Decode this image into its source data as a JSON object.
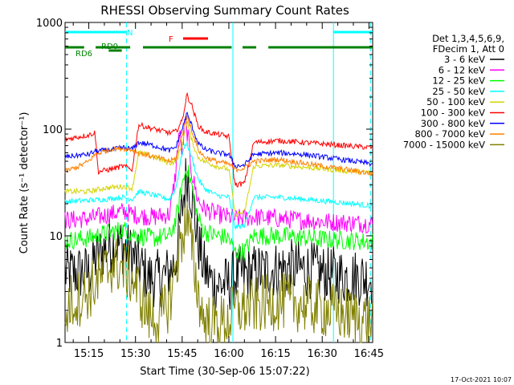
{
  "chart_data": {
    "type": "line",
    "title": "RHESSI Observing Summary Count Rates",
    "xlabel": "Start Time (30-Sep-06 15:07:22)",
    "ylabel": "Count Rate (s⁻¹ detector⁻¹)",
    "x_ticks": [
      "15:15",
      "15:30",
      "15:45",
      "16:00",
      "16:15",
      "16:30",
      "16:45"
    ],
    "x_tick_minutes": [
      15,
      30,
      45,
      60,
      75,
      90,
      105
    ],
    "xlim_minutes": [
      7.37,
      106.2
    ],
    "y_scale": "log",
    "ylim": [
      1,
      1000
    ],
    "y_ticks": [
      "1",
      "10",
      "100",
      "1000"
    ],
    "y_tick_values": [
      1,
      10,
      100,
      1000
    ],
    "legend_header": [
      "Det 1,3,4,5,6,9,",
      "FDecim 1, Att 0"
    ],
    "legend_position": "right",
    "series": [
      {
        "name": "3 - 6 keV",
        "color": "#000000",
        "points": [
          [
            7.4,
            4.5
          ],
          [
            15,
            4.5
          ],
          [
            17,
            6
          ],
          [
            20,
            7.5
          ],
          [
            23,
            8.5
          ],
          [
            26,
            8
          ],
          [
            29,
            6.5
          ],
          [
            31,
            5.5
          ],
          [
            34,
            4
          ],
          [
            38,
            4
          ],
          [
            41,
            4.5
          ],
          [
            43,
            6
          ],
          [
            45,
            18
          ],
          [
            46.5,
            40
          ],
          [
            48,
            25
          ],
          [
            50,
            9
          ],
          [
            52,
            5
          ],
          [
            55,
            3.5
          ],
          [
            60,
            3.5
          ],
          [
            62,
            4.2
          ],
          [
            68,
            4.5
          ],
          [
            74,
            4.8
          ],
          [
            80,
            5
          ],
          [
            86,
            4.8
          ],
          [
            90,
            4.5
          ],
          [
            96,
            4.2
          ],
          [
            106.2,
            4
          ]
        ]
      },
      {
        "name": "6 - 12 keV",
        "color": "#ff00ff",
        "points": [
          [
            7.4,
            14
          ],
          [
            15,
            14.5
          ],
          [
            20,
            15.5
          ],
          [
            26,
            17
          ],
          [
            29,
            16
          ],
          [
            31,
            15.5
          ],
          [
            36,
            15
          ],
          [
            41,
            16
          ],
          [
            43,
            40
          ],
          [
            44,
            100
          ],
          [
            45,
            60
          ],
          [
            46,
            120
          ],
          [
            47,
            80
          ],
          [
            48,
            40
          ],
          [
            50,
            22
          ],
          [
            52,
            18
          ],
          [
            56,
            16
          ],
          [
            60,
            15
          ],
          [
            62,
            14.5
          ],
          [
            68,
            15
          ],
          [
            76,
            14.5
          ],
          [
            84,
            14
          ],
          [
            92,
            13.5
          ],
          [
            100,
            13.2
          ],
          [
            106.2,
            13
          ]
        ]
      },
      {
        "name": "12 - 25 keV",
        "color": "#00ff00",
        "points": [
          [
            7.4,
            9
          ],
          [
            15,
            9.5
          ],
          [
            20,
            10.5
          ],
          [
            26,
            11.5
          ],
          [
            29,
            10.5
          ],
          [
            31,
            10
          ],
          [
            36,
            9.5
          ],
          [
            41,
            10
          ],
          [
            43,
            14
          ],
          [
            45,
            30
          ],
          [
            46.5,
            45
          ],
          [
            48,
            30
          ],
          [
            50,
            15
          ],
          [
            52,
            11
          ],
          [
            56,
            10
          ],
          [
            60,
            9.5
          ],
          [
            62,
            7
          ],
          [
            65,
            7.2
          ],
          [
            68,
            10
          ],
          [
            76,
            10
          ],
          [
            84,
            9.6
          ],
          [
            92,
            9.2
          ],
          [
            100,
            9
          ],
          [
            106.2,
            8.8
          ]
        ]
      },
      {
        "name": "25 - 50 keV",
        "color": "#00ffff",
        "points": [
          [
            7.4,
            21
          ],
          [
            15,
            21.5
          ],
          [
            20,
            22
          ],
          [
            26,
            23
          ],
          [
            29,
            22
          ],
          [
            31,
            26
          ],
          [
            36,
            24
          ],
          [
            41,
            22
          ],
          [
            43,
            28
          ],
          [
            45,
            60
          ],
          [
            46.5,
            75
          ],
          [
            48,
            55
          ],
          [
            50,
            35
          ],
          [
            52,
            28
          ],
          [
            56,
            24
          ],
          [
            60,
            23
          ],
          [
            62,
            12
          ],
          [
            65,
            12.5
          ],
          [
            68,
            23
          ],
          [
            76,
            23
          ],
          [
            84,
            22
          ],
          [
            92,
            21
          ],
          [
            100,
            20
          ],
          [
            106.2,
            19
          ]
        ]
      },
      {
        "name": "50 - 100 keV",
        "color": "#d4d400",
        "points": [
          [
            7.4,
            26
          ],
          [
            15,
            26
          ],
          [
            20,
            28
          ],
          [
            26,
            29
          ],
          [
            29,
            28
          ],
          [
            31,
            60
          ],
          [
            36,
            55
          ],
          [
            41,
            48
          ],
          [
            43,
            50
          ],
          [
            45,
            70
          ],
          [
            46.5,
            120
          ],
          [
            48,
            80
          ],
          [
            50,
            55
          ],
          [
            52,
            50
          ],
          [
            56,
            45
          ],
          [
            60,
            42
          ],
          [
            62,
            16
          ],
          [
            65,
            16.5
          ],
          [
            68,
            45
          ],
          [
            76,
            46
          ],
          [
            84,
            44
          ],
          [
            92,
            42
          ],
          [
            100,
            40
          ],
          [
            106.2,
            39
          ]
        ]
      },
      {
        "name": "100 - 300 keV",
        "color": "#ff0000",
        "points": [
          [
            7.4,
            80
          ],
          [
            12,
            85
          ],
          [
            15,
            88
          ],
          [
            17,
            93
          ],
          [
            18,
            40
          ],
          [
            22,
            42
          ],
          [
            26,
            45
          ],
          [
            29,
            42
          ],
          [
            31,
            110
          ],
          [
            36,
            100
          ],
          [
            41,
            92
          ],
          [
            43,
            95
          ],
          [
            45,
            120
          ],
          [
            46.5,
            210
          ],
          [
            48,
            170
          ],
          [
            50,
            110
          ],
          [
            52,
            95
          ],
          [
            56,
            90
          ],
          [
            60,
            85
          ],
          [
            62,
            30
          ],
          [
            65,
            31
          ],
          [
            68,
            75
          ],
          [
            76,
            78
          ],
          [
            84,
            75
          ],
          [
            92,
            72
          ],
          [
            100,
            69
          ],
          [
            106.2,
            67
          ]
        ]
      },
      {
        "name": "300 - 800 keV",
        "color": "#0000ff",
        "points": [
          [
            7.4,
            55
          ],
          [
            12,
            57
          ],
          [
            15,
            58
          ],
          [
            17,
            62
          ],
          [
            22,
            64
          ],
          [
            26,
            67
          ],
          [
            29,
            65
          ],
          [
            31,
            75
          ],
          [
            36,
            70
          ],
          [
            41,
            63
          ],
          [
            43,
            68
          ],
          [
            45,
            100
          ],
          [
            46.5,
            140
          ],
          [
            48,
            110
          ],
          [
            50,
            75
          ],
          [
            52,
            65
          ],
          [
            56,
            60
          ],
          [
            60,
            58
          ],
          [
            62,
            45
          ],
          [
            65,
            46
          ],
          [
            68,
            58
          ],
          [
            76,
            60
          ],
          [
            84,
            58
          ],
          [
            92,
            54
          ],
          [
            100,
            50
          ],
          [
            106.2,
            47
          ]
        ]
      },
      {
        "name": "800 - 7000 keV",
        "color": "#ff8000",
        "points": [
          [
            7.4,
            40
          ],
          [
            12,
            45
          ],
          [
            15,
            50
          ],
          [
            17,
            58
          ],
          [
            22,
            65
          ],
          [
            26,
            66
          ],
          [
            29,
            64
          ],
          [
            31,
            60
          ],
          [
            36,
            55
          ],
          [
            41,
            50
          ],
          [
            43,
            53
          ],
          [
            45,
            90
          ],
          [
            46.5,
            130
          ],
          [
            48,
            100
          ],
          [
            50,
            65
          ],
          [
            52,
            55
          ],
          [
            56,
            50
          ],
          [
            60,
            47
          ],
          [
            62,
            42
          ],
          [
            65,
            43
          ],
          [
            68,
            50
          ],
          [
            76,
            52
          ],
          [
            84,
            48
          ],
          [
            92,
            44
          ],
          [
            100,
            41
          ],
          [
            106.2,
            38
          ]
        ]
      },
      {
        "name": "7000 - 15000 keV",
        "color": "#808000",
        "points": [
          [
            7.4,
            1.6
          ],
          [
            9,
            2.4
          ],
          [
            11,
            2.5
          ],
          [
            15,
            3
          ],
          [
            17,
            3.5
          ],
          [
            20,
            4.5
          ],
          [
            23,
            5.5
          ],
          [
            26,
            5
          ],
          [
            29,
            4
          ],
          [
            31,
            3
          ],
          [
            34,
            1.8
          ],
          [
            38,
            1.6
          ],
          [
            41,
            2.5
          ],
          [
            43,
            5
          ],
          [
            45,
            10
          ],
          [
            46.5,
            14
          ],
          [
            48,
            8
          ],
          [
            50,
            3
          ],
          [
            52,
            1.6
          ],
          [
            56,
            1.5
          ],
          [
            60,
            1.6
          ],
          [
            62,
            2
          ],
          [
            68,
            2.2
          ],
          [
            74,
            2.4
          ],
          [
            80,
            2.4
          ],
          [
            86,
            2.2
          ],
          [
            92,
            2
          ],
          [
            98,
            1.8
          ],
          [
            106.2,
            1.6
          ]
        ]
      }
    ],
    "flag_bars": [
      {
        "label": "N",
        "color": "#00ffff",
        "segments": [
          [
            7.4,
            27.1
          ],
          [
            93.6,
            106.2
          ]
        ]
      },
      {
        "label": "F",
        "color": "#ff0000",
        "segments": [
          [
            45.3,
            53.3
          ]
        ]
      },
      {
        "label": "RD0",
        "color": "#008000",
        "segments": [
          [
            21.4,
            25.6
          ]
        ]
      },
      {
        "label": "RD6",
        "color": "#008000",
        "segments": [
          [
            7.4,
            13.5
          ],
          [
            17.2,
            28.3
          ],
          [
            32.4,
            60.9
          ],
          [
            64.4,
            68.8
          ],
          [
            72.7,
            106.2
          ]
        ]
      }
    ],
    "vlines": [
      {
        "minute": 27.1,
        "style": "dashed"
      },
      {
        "minute": 61.3,
        "style": "solid"
      },
      {
        "minute": 93.6,
        "style": "solid"
      },
      {
        "minute": 105.5,
        "style": "dashed"
      }
    ],
    "stamp": "17-Oct-2021 10:07"
  }
}
